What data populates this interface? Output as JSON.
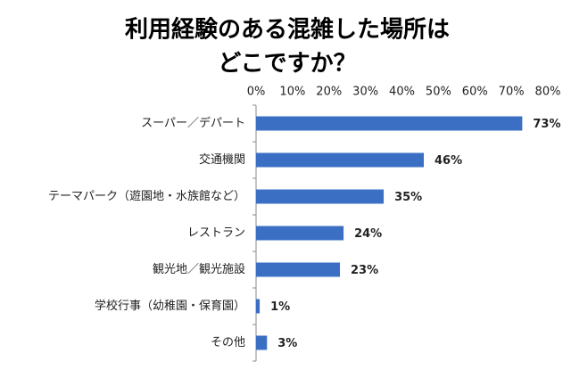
{
  "chart_data": {
    "type": "bar",
    "orientation": "horizontal",
    "title": [
      "利用経験のある混雑した場所は",
      "どこですか？"
    ],
    "categories": [
      "スーパー／デパート",
      "交通機関",
      "テーマパーク（遊園地・水族館など）",
      "レストラン",
      "観光地／観光施設",
      "学校行事（幼稚園・保育園）",
      "その他"
    ],
    "values": [
      73,
      46,
      35,
      24,
      23,
      1,
      3
    ],
    "value_labels": [
      "73%",
      "46%",
      "35%",
      "24%",
      "23%",
      "1%",
      "3%"
    ],
    "color": "#3b6fc4",
    "xlim": [
      0,
      80
    ],
    "xticks": [
      {
        "value": 0,
        "label": "0%"
      },
      {
        "value": 10,
        "label": "10%"
      },
      {
        "value": 20,
        "label": "20%"
      },
      {
        "value": 30,
        "label": "30%"
      },
      {
        "value": 40,
        "label": "40%"
      },
      {
        "value": 50,
        "label": "50%"
      },
      {
        "value": 60,
        "label": "60%"
      },
      {
        "value": 70,
        "label": "70%"
      },
      {
        "value": 80,
        "label": "80%"
      }
    ],
    "grid": false
  }
}
